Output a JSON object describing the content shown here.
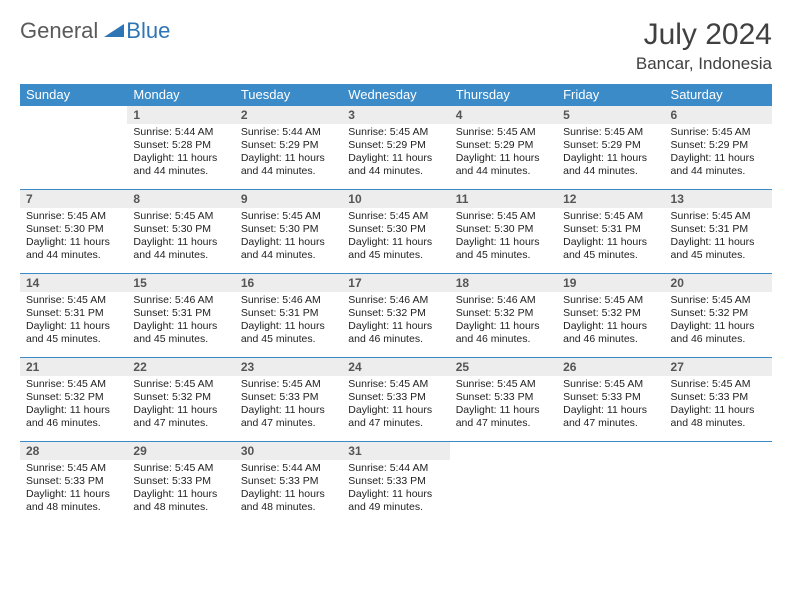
{
  "logo": {
    "general": "General",
    "blue": "Blue"
  },
  "colors": {
    "header_bg": "#3b8bc9",
    "header_text": "#ffffff",
    "daynum_bg": "#ededed",
    "daynum_text": "#555555",
    "body_text": "#222222",
    "title_text": "#404040",
    "logo_general": "#5a5a5a",
    "logo_blue": "#2e75b6",
    "row_divider": "#3b8bc9"
  },
  "title": "July 2024",
  "location": "Bancar, Indonesia",
  "weekdays": [
    "Sunday",
    "Monday",
    "Tuesday",
    "Wednesday",
    "Thursday",
    "Friday",
    "Saturday"
  ],
  "weeks": [
    [
      null,
      {
        "day": "1",
        "sunrise": "Sunrise: 5:44 AM",
        "sunset": "Sunset: 5:28 PM",
        "day1": "Daylight: 11 hours",
        "day2": "and 44 minutes."
      },
      {
        "day": "2",
        "sunrise": "Sunrise: 5:44 AM",
        "sunset": "Sunset: 5:29 PM",
        "day1": "Daylight: 11 hours",
        "day2": "and 44 minutes."
      },
      {
        "day": "3",
        "sunrise": "Sunrise: 5:45 AM",
        "sunset": "Sunset: 5:29 PM",
        "day1": "Daylight: 11 hours",
        "day2": "and 44 minutes."
      },
      {
        "day": "4",
        "sunrise": "Sunrise: 5:45 AM",
        "sunset": "Sunset: 5:29 PM",
        "day1": "Daylight: 11 hours",
        "day2": "and 44 minutes."
      },
      {
        "day": "5",
        "sunrise": "Sunrise: 5:45 AM",
        "sunset": "Sunset: 5:29 PM",
        "day1": "Daylight: 11 hours",
        "day2": "and 44 minutes."
      },
      {
        "day": "6",
        "sunrise": "Sunrise: 5:45 AM",
        "sunset": "Sunset: 5:29 PM",
        "day1": "Daylight: 11 hours",
        "day2": "and 44 minutes."
      }
    ],
    [
      {
        "day": "7",
        "sunrise": "Sunrise: 5:45 AM",
        "sunset": "Sunset: 5:30 PM",
        "day1": "Daylight: 11 hours",
        "day2": "and 44 minutes."
      },
      {
        "day": "8",
        "sunrise": "Sunrise: 5:45 AM",
        "sunset": "Sunset: 5:30 PM",
        "day1": "Daylight: 11 hours",
        "day2": "and 44 minutes."
      },
      {
        "day": "9",
        "sunrise": "Sunrise: 5:45 AM",
        "sunset": "Sunset: 5:30 PM",
        "day1": "Daylight: 11 hours",
        "day2": "and 44 minutes."
      },
      {
        "day": "10",
        "sunrise": "Sunrise: 5:45 AM",
        "sunset": "Sunset: 5:30 PM",
        "day1": "Daylight: 11 hours",
        "day2": "and 45 minutes."
      },
      {
        "day": "11",
        "sunrise": "Sunrise: 5:45 AM",
        "sunset": "Sunset: 5:30 PM",
        "day1": "Daylight: 11 hours",
        "day2": "and 45 minutes."
      },
      {
        "day": "12",
        "sunrise": "Sunrise: 5:45 AM",
        "sunset": "Sunset: 5:31 PM",
        "day1": "Daylight: 11 hours",
        "day2": "and 45 minutes."
      },
      {
        "day": "13",
        "sunrise": "Sunrise: 5:45 AM",
        "sunset": "Sunset: 5:31 PM",
        "day1": "Daylight: 11 hours",
        "day2": "and 45 minutes."
      }
    ],
    [
      {
        "day": "14",
        "sunrise": "Sunrise: 5:45 AM",
        "sunset": "Sunset: 5:31 PM",
        "day1": "Daylight: 11 hours",
        "day2": "and 45 minutes."
      },
      {
        "day": "15",
        "sunrise": "Sunrise: 5:46 AM",
        "sunset": "Sunset: 5:31 PM",
        "day1": "Daylight: 11 hours",
        "day2": "and 45 minutes."
      },
      {
        "day": "16",
        "sunrise": "Sunrise: 5:46 AM",
        "sunset": "Sunset: 5:31 PM",
        "day1": "Daylight: 11 hours",
        "day2": "and 45 minutes."
      },
      {
        "day": "17",
        "sunrise": "Sunrise: 5:46 AM",
        "sunset": "Sunset: 5:32 PM",
        "day1": "Daylight: 11 hours",
        "day2": "and 46 minutes."
      },
      {
        "day": "18",
        "sunrise": "Sunrise: 5:46 AM",
        "sunset": "Sunset: 5:32 PM",
        "day1": "Daylight: 11 hours",
        "day2": "and 46 minutes."
      },
      {
        "day": "19",
        "sunrise": "Sunrise: 5:45 AM",
        "sunset": "Sunset: 5:32 PM",
        "day1": "Daylight: 11 hours",
        "day2": "and 46 minutes."
      },
      {
        "day": "20",
        "sunrise": "Sunrise: 5:45 AM",
        "sunset": "Sunset: 5:32 PM",
        "day1": "Daylight: 11 hours",
        "day2": "and 46 minutes."
      }
    ],
    [
      {
        "day": "21",
        "sunrise": "Sunrise: 5:45 AM",
        "sunset": "Sunset: 5:32 PM",
        "day1": "Daylight: 11 hours",
        "day2": "and 46 minutes."
      },
      {
        "day": "22",
        "sunrise": "Sunrise: 5:45 AM",
        "sunset": "Sunset: 5:32 PM",
        "day1": "Daylight: 11 hours",
        "day2": "and 47 minutes."
      },
      {
        "day": "23",
        "sunrise": "Sunrise: 5:45 AM",
        "sunset": "Sunset: 5:33 PM",
        "day1": "Daylight: 11 hours",
        "day2": "and 47 minutes."
      },
      {
        "day": "24",
        "sunrise": "Sunrise: 5:45 AM",
        "sunset": "Sunset: 5:33 PM",
        "day1": "Daylight: 11 hours",
        "day2": "and 47 minutes."
      },
      {
        "day": "25",
        "sunrise": "Sunrise: 5:45 AM",
        "sunset": "Sunset: 5:33 PM",
        "day1": "Daylight: 11 hours",
        "day2": "and 47 minutes."
      },
      {
        "day": "26",
        "sunrise": "Sunrise: 5:45 AM",
        "sunset": "Sunset: 5:33 PM",
        "day1": "Daylight: 11 hours",
        "day2": "and 47 minutes."
      },
      {
        "day": "27",
        "sunrise": "Sunrise: 5:45 AM",
        "sunset": "Sunset: 5:33 PM",
        "day1": "Daylight: 11 hours",
        "day2": "and 48 minutes."
      }
    ],
    [
      {
        "day": "28",
        "sunrise": "Sunrise: 5:45 AM",
        "sunset": "Sunset: 5:33 PM",
        "day1": "Daylight: 11 hours",
        "day2": "and 48 minutes."
      },
      {
        "day": "29",
        "sunrise": "Sunrise: 5:45 AM",
        "sunset": "Sunset: 5:33 PM",
        "day1": "Daylight: 11 hours",
        "day2": "and 48 minutes."
      },
      {
        "day": "30",
        "sunrise": "Sunrise: 5:44 AM",
        "sunset": "Sunset: 5:33 PM",
        "day1": "Daylight: 11 hours",
        "day2": "and 48 minutes."
      },
      {
        "day": "31",
        "sunrise": "Sunrise: 5:44 AM",
        "sunset": "Sunset: 5:33 PM",
        "day1": "Daylight: 11 hours",
        "day2": "and 49 minutes."
      },
      null,
      null,
      null
    ]
  ]
}
